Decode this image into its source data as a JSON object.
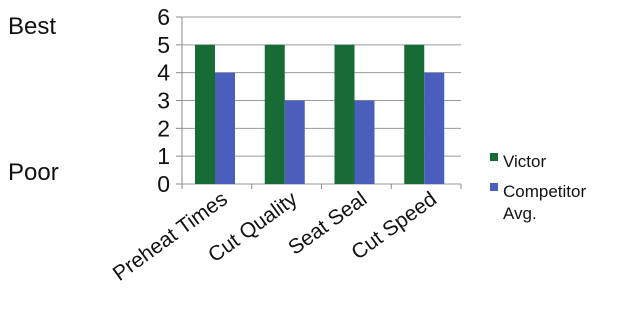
{
  "side_labels": {
    "top": "Best",
    "bottom": "Poor"
  },
  "chart_data": {
    "type": "bar",
    "categories": [
      "Preheat Times",
      "Cut Quality",
      "Seat Seal",
      "Cut Speed"
    ],
    "series": [
      {
        "name": "Victor",
        "values": [
          5,
          5,
          5,
          5
        ],
        "color": "#176b35"
      },
      {
        "name": "Competitor Avg.",
        "values": [
          4,
          3,
          3,
          4
        ],
        "color": "#4a5ebc"
      }
    ],
    "ylim": [
      0,
      6
    ],
    "yticks": [
      0,
      1,
      2,
      3,
      4,
      5,
      6
    ],
    "grid": true,
    "legend_position": "right",
    "x_tick_rotation": "angled"
  }
}
